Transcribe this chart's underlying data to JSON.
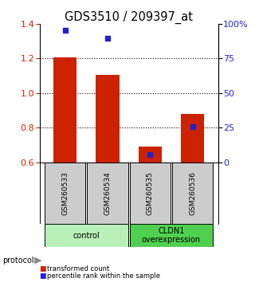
{
  "title": "GDS3510 / 209397_at",
  "samples": [
    "GSM260533",
    "GSM260534",
    "GSM260535",
    "GSM260536"
  ],
  "red_values": [
    1.205,
    1.105,
    0.692,
    0.88
  ],
  "blue_percentiles": [
    0.955,
    0.895,
    0.055,
    0.255
  ],
  "bar_bottom": 0.6,
  "ylim_left": [
    0.6,
    1.4
  ],
  "yticks_left": [
    0.6,
    0.8,
    1.0,
    1.2,
    1.4
  ],
  "yticks_right": [
    0.0,
    0.25,
    0.5,
    0.75,
    1.0
  ],
  "ytick_labels_right": [
    "0",
    "25",
    "50",
    "75",
    "100%"
  ],
  "hlines": [
    0.8,
    1.0,
    1.2
  ],
  "groups": [
    {
      "label": "control",
      "samples": [
        0,
        1
      ],
      "color": "#b8f0b8"
    },
    {
      "label": "CLDN1\noverexpression",
      "samples": [
        2,
        3
      ],
      "color": "#50d050"
    }
  ],
  "protocol_label": "protocol",
  "bar_color": "#cc2200",
  "blue_color": "#2222cc",
  "legend_items": [
    {
      "color": "#cc2200",
      "label": "transformed count"
    },
    {
      "color": "#2222cc",
      "label": "percentile rank within the sample"
    }
  ],
  "bar_width": 0.55,
  "title_fontsize": 10.5,
  "tick_fontsize": 8
}
